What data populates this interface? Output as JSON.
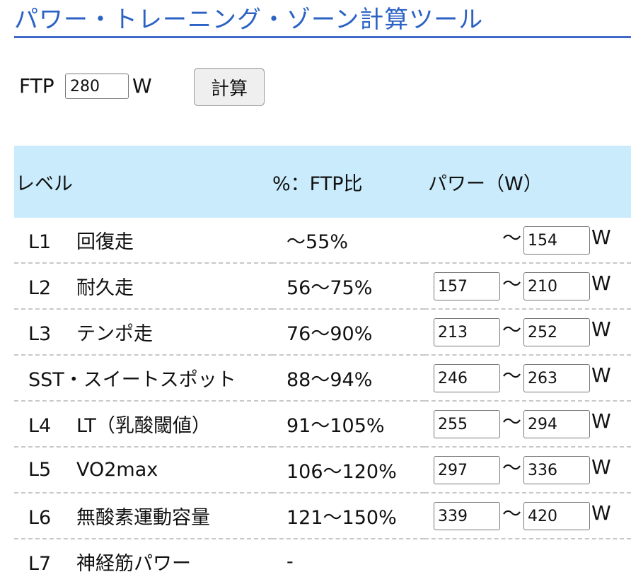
{
  "page": {
    "title": "パワー・トレーニング・ゾーン計算ツール"
  },
  "ftp": {
    "label": "FTP",
    "value": "280",
    "unit": "W",
    "calc_button": "計算"
  },
  "table": {
    "headers": {
      "level": "レベル",
      "percent": "%：FTP比",
      "power": "パワー（W）"
    },
    "tilde": "〜",
    "unit": "W",
    "rows": [
      {
        "code": "L1",
        "name": "回復走",
        "percent": "〜55%",
        "min": null,
        "max": "154"
      },
      {
        "code": "L2",
        "name": "耐久走",
        "percent": "56〜75%",
        "min": "157",
        "max": "210"
      },
      {
        "code": "L3",
        "name": "テンポ走",
        "percent": "76〜90%",
        "min": "213",
        "max": "252"
      },
      {
        "code": "SST",
        "name": "・スイートスポット",
        "percent": "88〜94%",
        "min": "246",
        "max": "263"
      },
      {
        "code": "L4",
        "name": "LT（乳酸閾値）",
        "percent": "91〜105%",
        "min": "255",
        "max": "294"
      },
      {
        "code": "L5",
        "name": "VO2max",
        "percent": "106〜120%",
        "min": "297",
        "max": "336"
      },
      {
        "code": "L6",
        "name": "無酸素運動容量",
        "percent": "121〜150%",
        "min": "339",
        "max": "420"
      },
      {
        "code": "L7",
        "name": "神経筋パワー",
        "percent": "-",
        "min": null,
        "max": null
      }
    ]
  },
  "colors": {
    "title": "#2b62c4",
    "title_rule": "#4169c7",
    "header_bg": "#c9ebfb",
    "row_divider": "#c8c8c8"
  }
}
